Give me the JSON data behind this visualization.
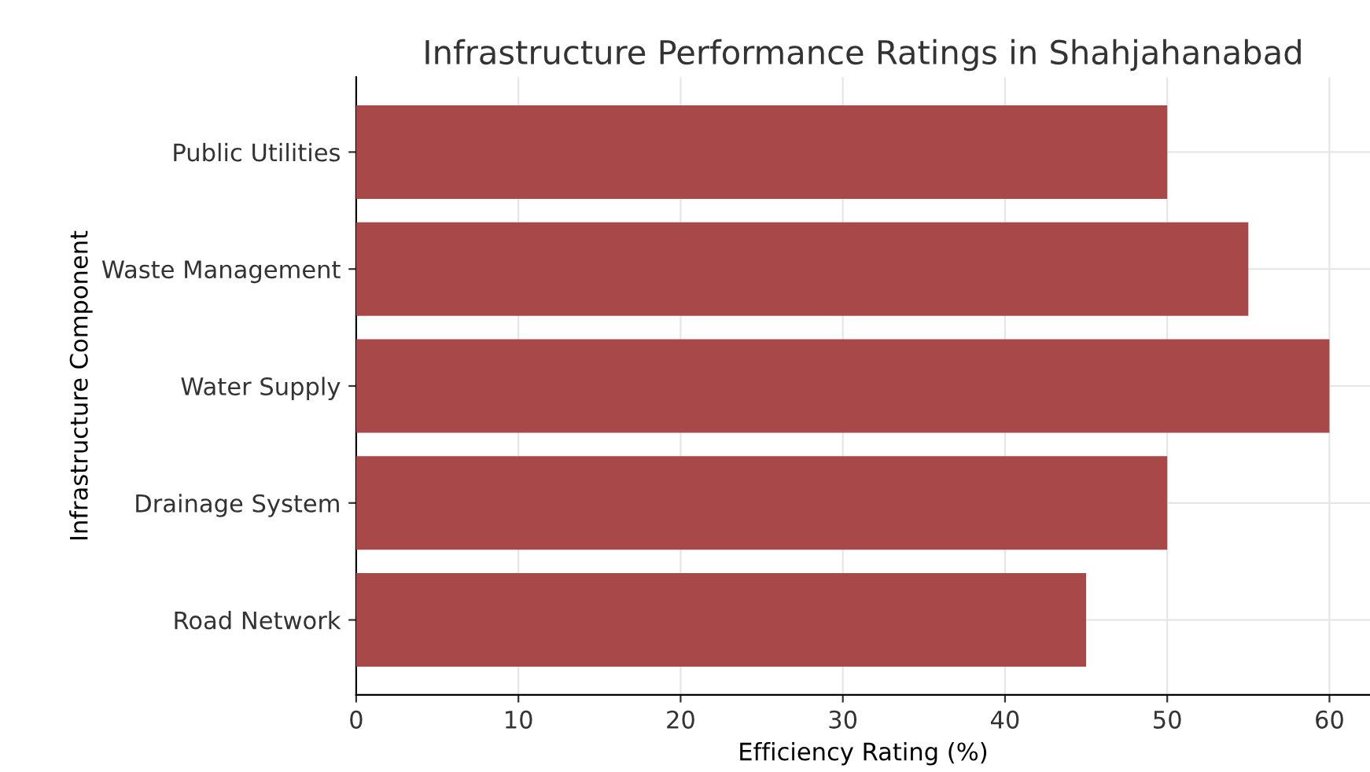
{
  "chart_data": {
    "type": "bar",
    "orientation": "horizontal",
    "title": "Infrastructure Performance Ratings in Shahjahanabad",
    "xlabel": "Efficiency Rating (%)",
    "ylabel": "Infrastructure Component",
    "categories": [
      "Public Utilities",
      "Waste Management",
      "Water Supply",
      "Drainage System",
      "Road Network"
    ],
    "values": [
      50,
      55,
      60,
      50,
      45
    ],
    "color": "#a84848",
    "xlim": [
      0,
      62.5
    ],
    "xticks": [
      0,
      10,
      20,
      30,
      40,
      50,
      60
    ],
    "grid": true
  }
}
